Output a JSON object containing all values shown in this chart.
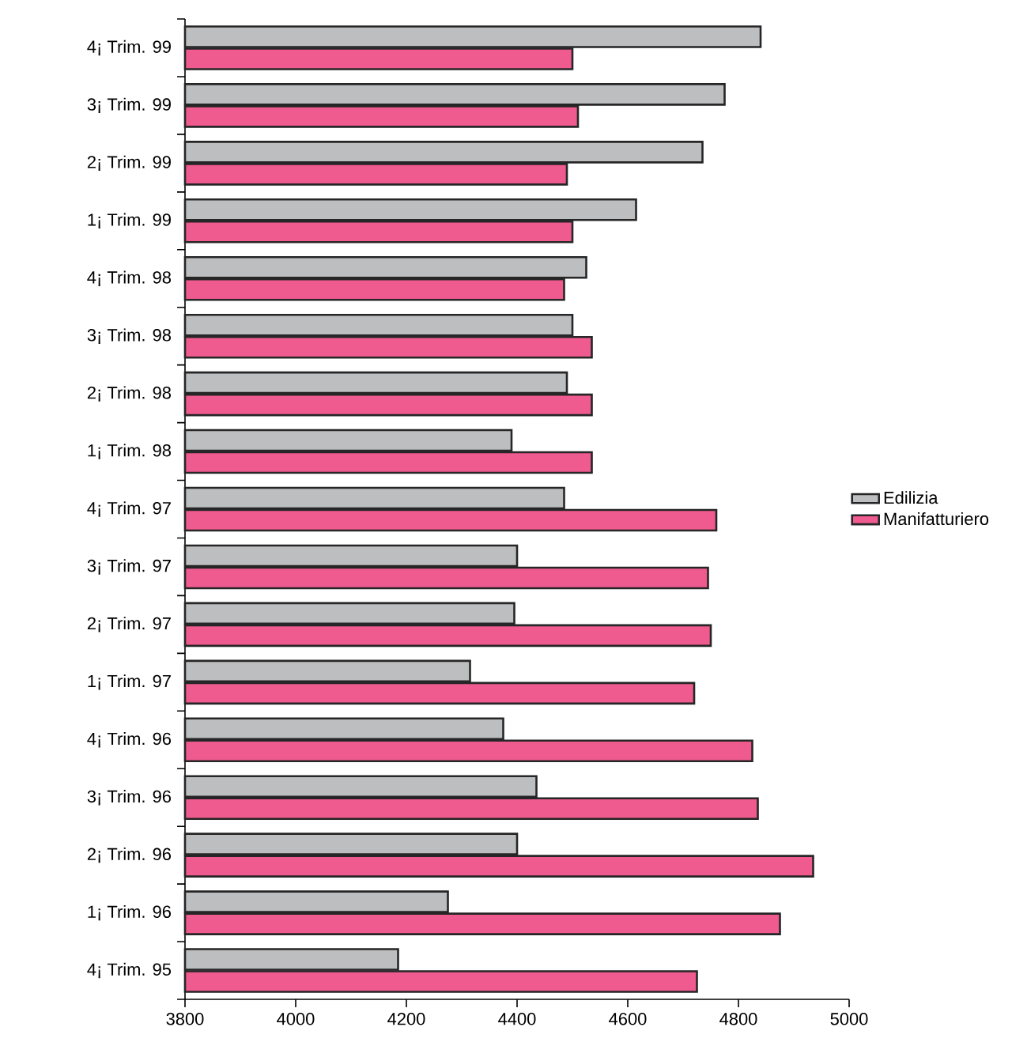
{
  "chart_data": {
    "type": "bar",
    "orientation": "horizontal",
    "categories": [
      "4¡ Trim. 99",
      "3¡ Trim. 99",
      "2¡ Trim. 99",
      "1¡ Trim. 99",
      "4¡ Trim. 98",
      "3¡ Trim. 98",
      "2¡ Trim. 98",
      "1¡ Trim. 98",
      "4¡ Trim. 97",
      "3¡ Trim. 97",
      "2¡ Trim. 97",
      "1¡ Trim. 97",
      "4¡ Trim. 96",
      "3¡ Trim. 96",
      "2¡ Trim. 96",
      "1¡ Trim. 96",
      "4¡ Trim. 95"
    ],
    "series": [
      {
        "name": "Edilizia",
        "color": "#bcbec0",
        "values": [
          4840,
          4775,
          4735,
          4615,
          4525,
          4500,
          4490,
          4390,
          4485,
          4400,
          4395,
          4315,
          4375,
          4435,
          4400,
          4275,
          4185
        ]
      },
      {
        "name": "Manifatturiero",
        "color": "#ef5a8f",
        "values": [
          4500,
          4510,
          4490,
          4500,
          4485,
          4535,
          4535,
          4535,
          4760,
          4745,
          4750,
          4720,
          4825,
          4835,
          4935,
          4875,
          4725
        ]
      }
    ],
    "xlim": [
      3800,
      5000
    ],
    "xticks": [
      3800,
      4000,
      4200,
      4400,
      4600,
      4800,
      5000
    ],
    "grid": false,
    "legend": "right"
  }
}
